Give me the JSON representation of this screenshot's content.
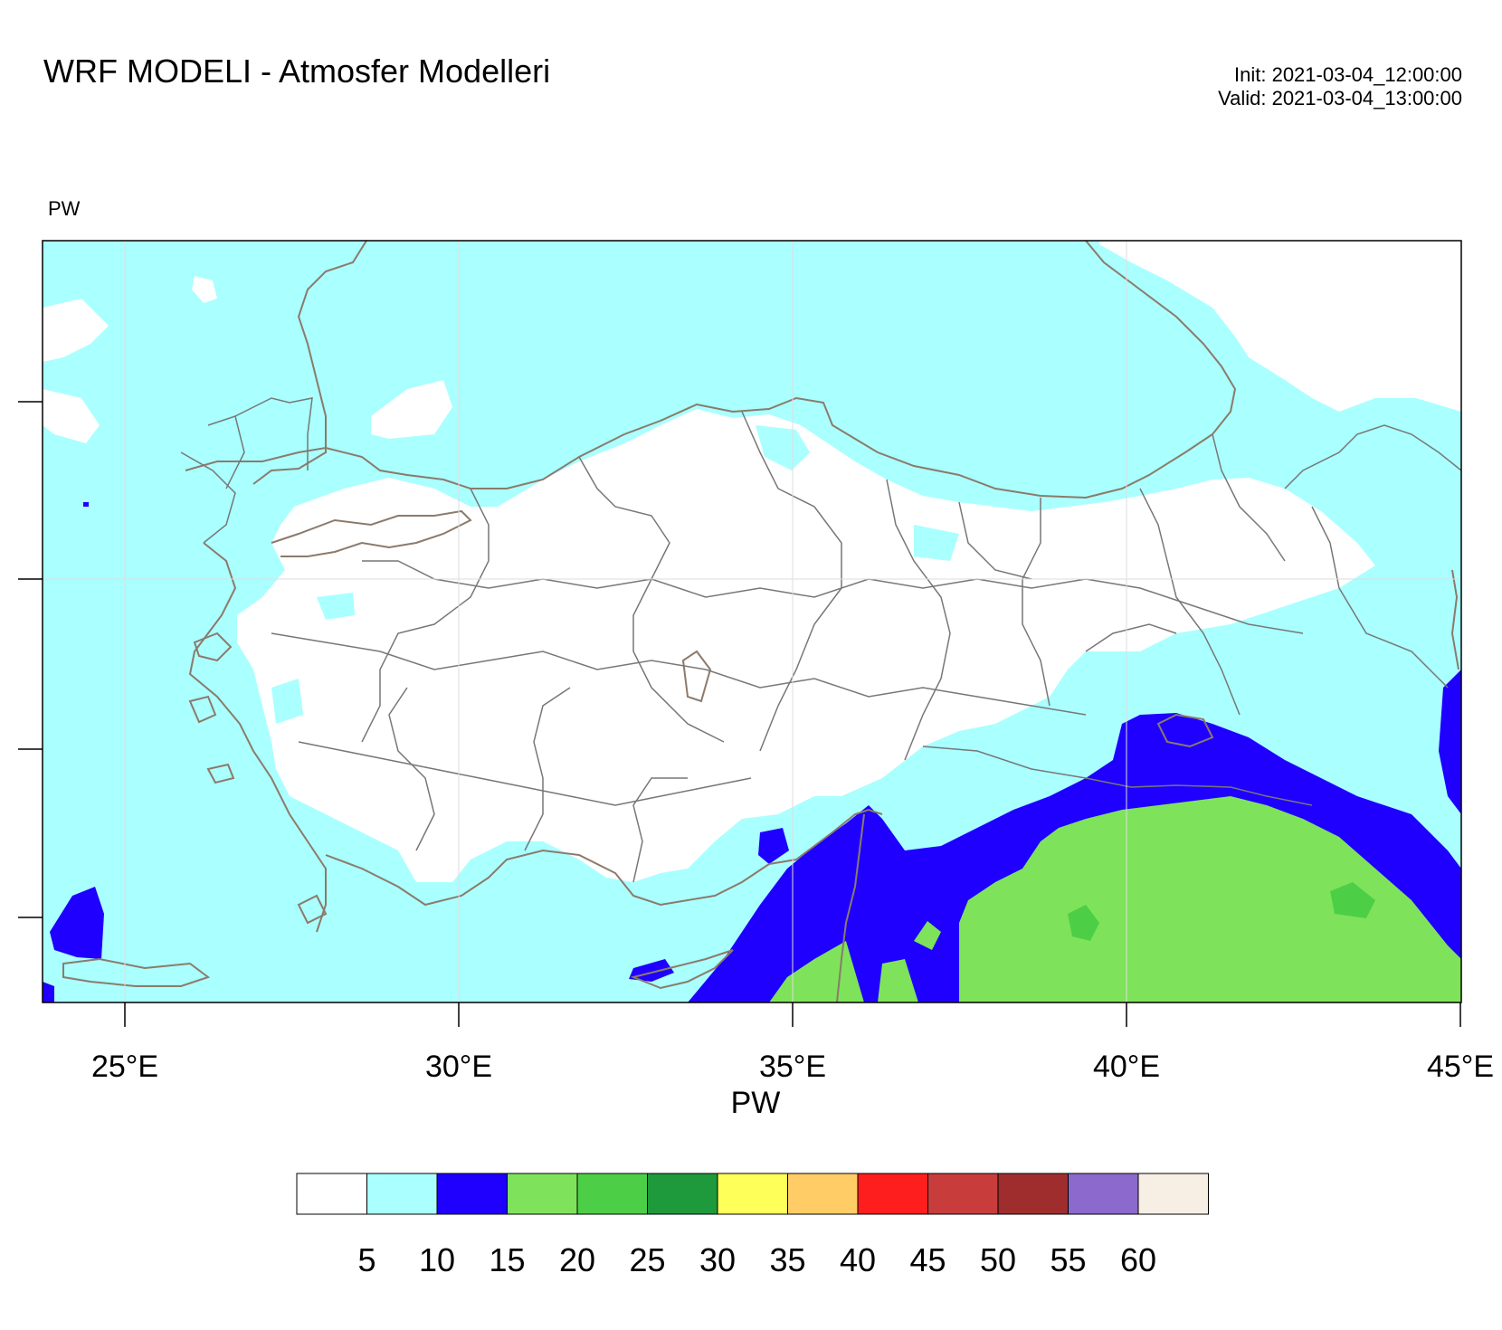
{
  "title": "WRF MODELI - Atmosfer Modelleri",
  "init_time": "Init: 2021-03-04_12:00:00",
  "valid_time": "Valid: 2021-03-04_13:00:00",
  "field_label": "PW",
  "map": {
    "lon_ticks": [
      "25°E",
      "30°E",
      "35°E",
      "40°E",
      "45°E"
    ],
    "fill_colors": {
      "lt5": "#ffffff",
      "5to10": "#aaffff",
      "10to15": "#1f00ff",
      "15to20": "#7ee35a"
    },
    "border_color": "#8c7a6b",
    "province_color": "#777777"
  },
  "colorbar": {
    "title": "PW",
    "labels": [
      "5",
      "10",
      "15",
      "20",
      "25",
      "30",
      "35",
      "40",
      "45",
      "50",
      "55",
      "60"
    ],
    "colors": [
      "#ffffff",
      "#aaffff",
      "#1f00ff",
      "#7ee35a",
      "#4ccf46",
      "#1e9a3c",
      "#ffff5a",
      "#ffcc66",
      "#ff1e1e",
      "#c83c3c",
      "#a02d2d",
      "#8c69cc",
      "#f7eee4"
    ]
  }
}
